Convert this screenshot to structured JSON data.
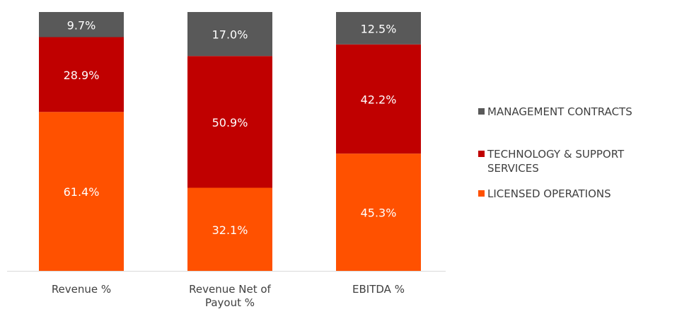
{
  "chart_data": {
    "type": "stacked_bar",
    "categories": [
      "Revenue %",
      "Revenue Net of Payout %",
      "EBITDA %"
    ],
    "series": [
      {
        "name": "LICENSED OPERATIONS",
        "color": "#ff5100",
        "values": [
          61.4,
          32.1,
          45.3
        ],
        "value_labels": [
          "61.4%",
          "32.1%",
          "45.3%"
        ]
      },
      {
        "name": "TECHNOLOGY & SUPPORT SERVICES",
        "color": "#c00000",
        "values": [
          28.9,
          50.9,
          42.2
        ],
        "value_labels": [
          "28.9%",
          "50.9%",
          "42.2%"
        ]
      },
      {
        "name": "MANAGEMENT CONTRACTS",
        "color": "#595959",
        "values": [
          9.7,
          17.0,
          12.5
        ],
        "value_labels": [
          "9.7%",
          "17.0%",
          "12.5%"
        ]
      }
    ],
    "ylim": [
      0,
      100
    ],
    "legend": "right"
  }
}
